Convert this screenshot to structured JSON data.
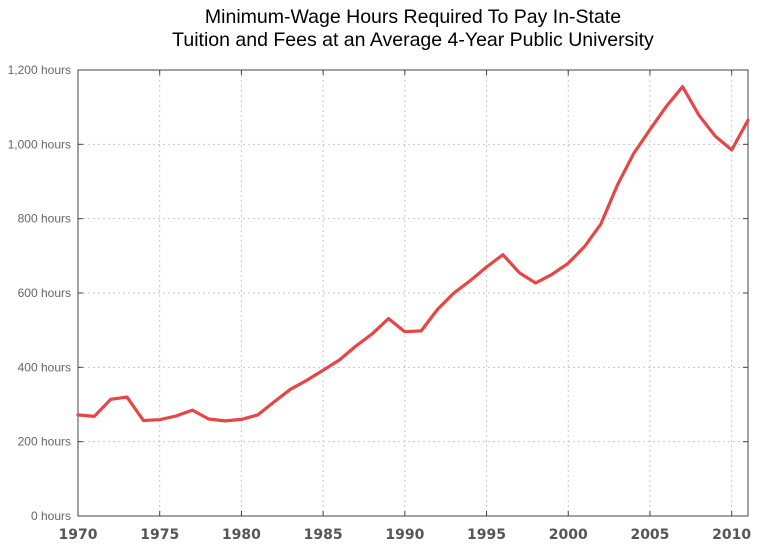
{
  "chart_data": {
    "type": "line",
    "title_lines": [
      "Minimum-Wage Hours Required To Pay In-State",
      "Tuition and Fees at an Average 4-Year Public University"
    ],
    "xlabel": "",
    "ylabel": "",
    "xlim": [
      1970,
      2011
    ],
    "ylim": [
      0,
      1200
    ],
    "grid": true,
    "x_ticks": [
      1970,
      1975,
      1980,
      1985,
      1990,
      1995,
      2000,
      2005,
      2010
    ],
    "x_tick_labels": [
      "1970",
      "1975",
      "1980",
      "1985",
      "1990",
      "1995",
      "2000",
      "2005",
      "2010"
    ],
    "y_ticks": [
      0,
      200,
      400,
      600,
      800,
      1000,
      1200
    ],
    "y_tick_labels": [
      "0 hours",
      "200 hours",
      "400 hours",
      "600 hours",
      "800 hours",
      "1,000 hours",
      "1,200 hours"
    ],
    "line_color": "#e84545",
    "series": [
      {
        "x": [
          1970,
          1971,
          1972,
          1973,
          1974,
          1975,
          1976,
          1977,
          1978,
          1979,
          1980,
          1981,
          1982,
          1983,
          1984,
          1985,
          1986,
          1987,
          1988,
          1989,
          1990,
          1991,
          1992,
          1993,
          1994,
          1995,
          1996,
          1997,
          1998,
          1999,
          2000,
          2001,
          2002,
          2003,
          2004,
          2005,
          2006,
          2007,
          2008,
          2009,
          2010,
          2011
        ],
        "values": [
          272,
          268,
          314,
          320,
          257,
          259,
          269,
          285,
          261,
          256,
          260,
          272,
          307,
          341,
          365,
          392,
          420,
          457,
          490,
          531,
          496,
          498,
          556,
          600,
          633,
          670,
          703,
          655,
          627,
          650,
          680,
          725,
          786,
          890,
          975,
          1040,
          1102,
          1155,
          1078,
          1022,
          985,
          1065
        ]
      }
    ]
  }
}
